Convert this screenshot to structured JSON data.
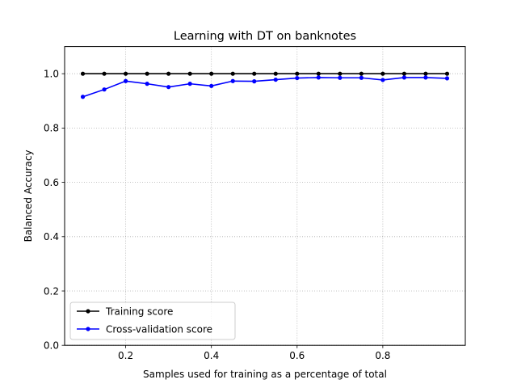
{
  "chart_data": {
    "type": "line",
    "title": "Learning with DT on banknotes",
    "xlabel": "Samples used for training as a percentage of total",
    "ylabel": "Balanced Accuracy",
    "xlim": [
      0.0575,
      0.9925
    ],
    "ylim": [
      0.0,
      1.1
    ],
    "xticks": [
      0.2,
      0.4,
      0.6,
      0.8
    ],
    "xtick_labels": [
      "0.2",
      "0.4",
      "0.6",
      "0.8"
    ],
    "yticks": [
      0.0,
      0.2,
      0.4,
      0.6,
      0.8,
      1.0
    ],
    "ytick_labels": [
      "0.0",
      "0.2",
      "0.4",
      "0.6",
      "0.8",
      "1.0"
    ],
    "grid": true,
    "legend_position": "lower-left",
    "x": [
      0.1,
      0.15,
      0.2,
      0.25,
      0.3,
      0.35,
      0.4,
      0.45,
      0.5,
      0.55,
      0.6,
      0.65,
      0.7,
      0.75,
      0.8,
      0.85,
      0.9,
      0.95
    ],
    "series": [
      {
        "name": "Training score",
        "color": "#000000",
        "values": [
          1.0,
          1.0,
          1.0,
          1.0,
          1.0,
          1.0,
          1.0,
          1.0,
          1.0,
          1.0,
          1.0,
          1.0,
          1.0,
          1.0,
          1.0,
          1.0,
          1.0,
          1.0
        ]
      },
      {
        "name": "Cross-validation score",
        "color": "#0000ff",
        "values": [
          0.915,
          0.942,
          0.973,
          0.963,
          0.951,
          0.963,
          0.955,
          0.973,
          0.972,
          0.978,
          0.984,
          0.986,
          0.985,
          0.985,
          0.977,
          0.986,
          0.986,
          0.983
        ]
      }
    ]
  }
}
